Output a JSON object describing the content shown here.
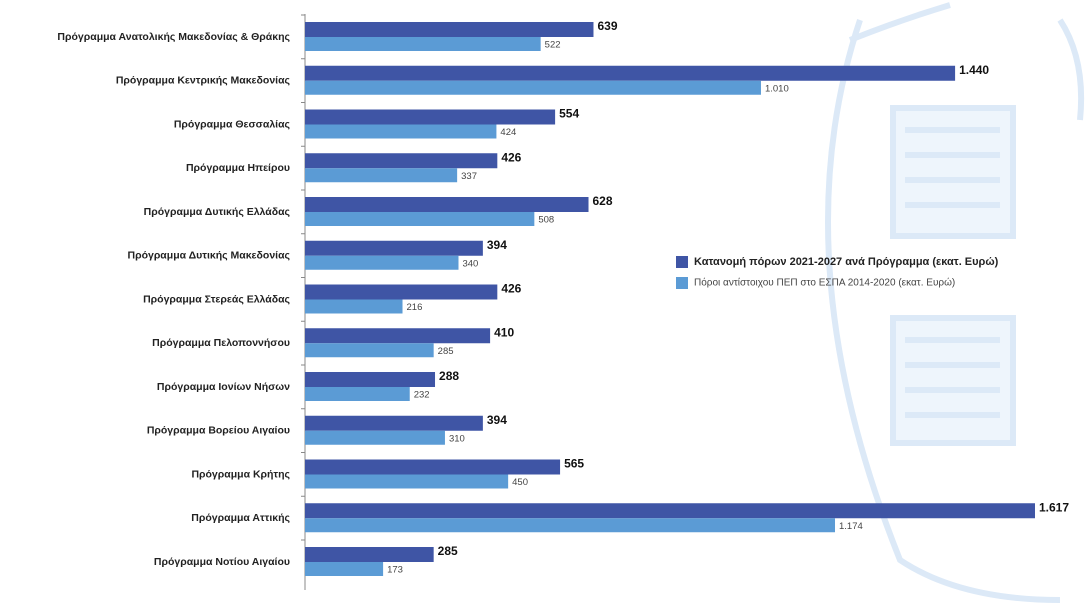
{
  "chart_data": {
    "type": "bar",
    "orientation": "horizontal",
    "categories": [
      "Πρόγραμμα Ανατολικής Μακεδονίας & Θράκης",
      "Πρόγραμμα Κεντρικής Μακεδονίας",
      "Πρόγραμμα Θεσσαλίας",
      "Πρόγραμμα Ηπείρου",
      "Πρόγραμμα Δυτικής Ελλάδας",
      "Πρόγραμμα Δυτικής Μακεδονίας",
      "Πρόγραμμα Στερεάς Ελλάδας",
      "Πρόγραμμα Πελοποννήσου",
      "Πρόγραμμα Ιονίων Νήσων",
      "Πρόγραμμα Βορείου Αιγαίου",
      "Πρόγραμμα Κρήτης",
      "Πρόγραμμα Αττικής",
      "Πρόγραμμα Νοτίου Αιγαίου"
    ],
    "series": [
      {
        "name": "Κατανομή πόρων 2021-2027 ανά Πρόγραμμα (εκατ. Ευρώ)",
        "color": "#3f55a5",
        "values": [
          639,
          1440,
          554,
          426,
          628,
          394,
          426,
          410,
          288,
          394,
          565,
          1617,
          285
        ],
        "value_labels": [
          "639",
          "1.440",
          "554",
          "426",
          "628",
          "394",
          "426",
          "410",
          "288",
          "394",
          "565",
          "1.617",
          "285"
        ]
      },
      {
        "name": "Πόροι αντίστοιχου ΠΕΠ στο ΕΣΠΑ 2014-2020 (εκατ. Ευρώ)",
        "color": "#5b9bd5",
        "values": [
          522,
          1010,
          424,
          337,
          508,
          340,
          216,
          285,
          232,
          310,
          450,
          1174,
          173
        ],
        "value_labels": [
          "522",
          "1.010",
          "424",
          "337",
          "508",
          "340",
          "216",
          "285",
          "232",
          "310",
          "450",
          "1.174",
          "173"
        ]
      }
    ]
  }
}
